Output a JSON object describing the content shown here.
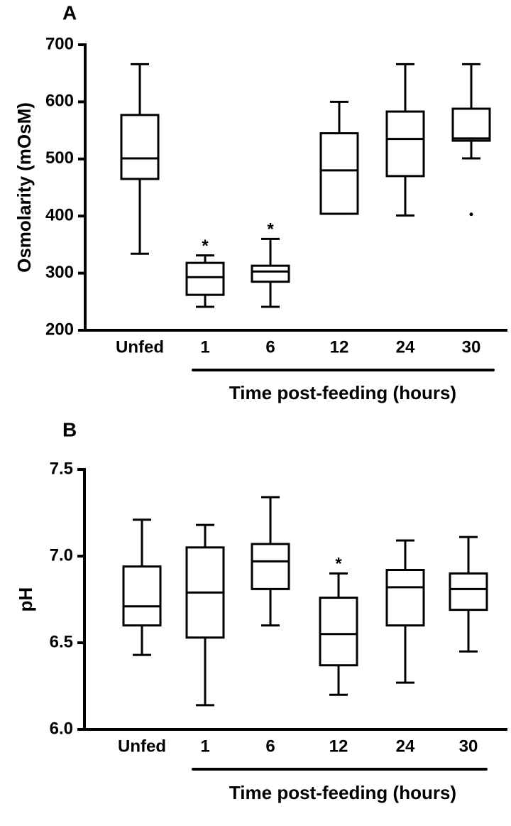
{
  "chart_data": [
    {
      "type": "box",
      "panel": "A",
      "ylabel": "Osmolarity (mOsM)",
      "xlabel": "Time post-feeding (hours)",
      "categories": [
        "Unfed",
        "1",
        "6",
        "12",
        "24",
        "30"
      ],
      "whisker_low": [
        334,
        241,
        241,
        404,
        401,
        501
      ],
      "q1": [
        465,
        262,
        285,
        404,
        470,
        532
      ],
      "median": [
        501,
        293,
        303,
        480,
        535,
        536
      ],
      "q3": [
        577,
        318,
        313,
        545,
        583,
        588
      ],
      "whisker_high": [
        666,
        331,
        360,
        600,
        666,
        666
      ],
      "outliers": [
        null,
        null,
        null,
        null,
        null,
        403
      ],
      "significance": [
        null,
        "*",
        "*",
        null,
        null,
        null
      ],
      "ylim": [
        200,
        700
      ],
      "yticks": [
        200,
        300,
        400,
        500,
        600,
        700
      ]
    },
    {
      "type": "box",
      "panel": "B",
      "ylabel": "pH",
      "xlabel": "Time post-feeding (hours)",
      "categories": [
        "Unfed",
        "1",
        "6",
        "12",
        "24",
        "30"
      ],
      "whisker_low": [
        6.43,
        6.14,
        6.6,
        6.2,
        6.27,
        6.45
      ],
      "q1": [
        6.6,
        6.53,
        6.81,
        6.37,
        6.6,
        6.69
      ],
      "median": [
        6.71,
        6.79,
        6.97,
        6.55,
        6.82,
        6.81
      ],
      "q3": [
        6.94,
        7.05,
        7.07,
        6.76,
        6.92,
        6.9
      ],
      "whisker_high": [
        7.21,
        7.18,
        7.34,
        6.9,
        7.09,
        7.11
      ],
      "outliers": [
        null,
        null,
        null,
        null,
        null,
        null
      ],
      "significance": [
        null,
        null,
        null,
        "*",
        null,
        null
      ],
      "ylim": [
        6,
        7.5
      ],
      "yticks": [
        {
          "value": 6,
          "label": "6.0"
        },
        6.5,
        {
          "value": 7,
          "label": "7.0"
        },
        7.5
      ]
    }
  ]
}
